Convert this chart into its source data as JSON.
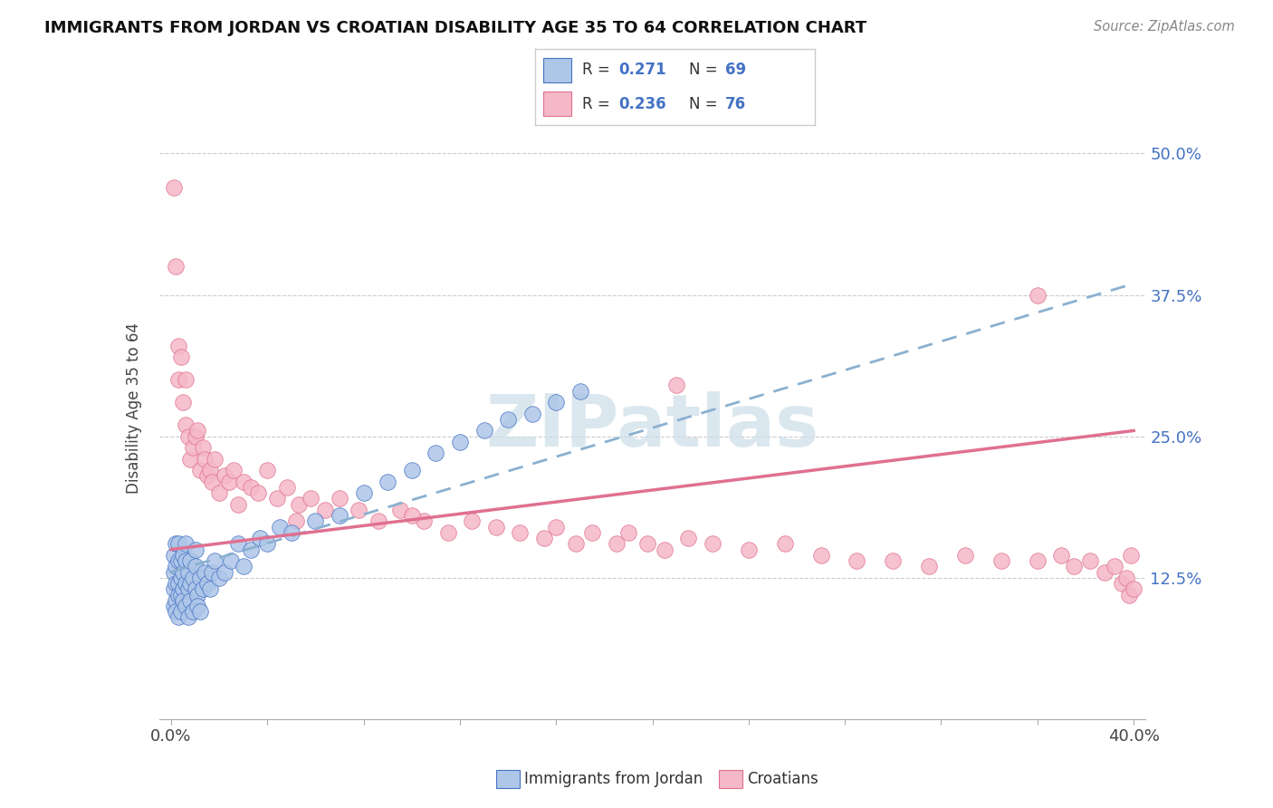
{
  "title": "IMMIGRANTS FROM JORDAN VS CROATIAN DISABILITY AGE 35 TO 64 CORRELATION CHART",
  "source_text": "Source: ZipAtlas.com",
  "ylabel": "Disability Age 35 to 64",
  "xlim": [
    0.0,
    0.4
  ],
  "ylim": [
    0.0,
    0.55
  ],
  "xtick_vals": [
    0.0,
    0.04,
    0.08,
    0.12,
    0.16,
    0.2,
    0.24,
    0.28,
    0.32,
    0.36,
    0.4
  ],
  "xtick_labels": [
    "0.0%",
    "",
    "",
    "",
    "",
    "",
    "",
    "",
    "",
    "",
    "40.0%"
  ],
  "yticks": [
    0.125,
    0.25,
    0.375,
    0.5
  ],
  "ytick_labels": [
    "12.5%",
    "25.0%",
    "37.5%",
    "50.0%"
  ],
  "jordan_color": "#aec6e8",
  "croatian_color": "#f5b8c8",
  "jordan_line_color": "#4472c4",
  "croatian_line_color": "#e07090",
  "jordan_trend_color": "#8ab0d0",
  "croatian_trend_color": "#e07090",
  "background_color": "#ffffff",
  "watermark_text": "ZIPatlas",
  "watermark_color": "#ccdde8",
  "legend_R_jordan": "0.271",
  "legend_N_jordan": "69",
  "legend_R_croatian": "0.236",
  "legend_N_croatian": "76",
  "jordan_x": [
    0.001,
    0.001,
    0.001,
    0.001,
    0.002,
    0.002,
    0.002,
    0.002,
    0.002,
    0.003,
    0.003,
    0.003,
    0.003,
    0.003,
    0.004,
    0.004,
    0.004,
    0.004,
    0.005,
    0.005,
    0.005,
    0.005,
    0.006,
    0.006,
    0.006,
    0.006,
    0.007,
    0.007,
    0.007,
    0.008,
    0.008,
    0.008,
    0.009,
    0.009,
    0.01,
    0.01,
    0.01,
    0.011,
    0.011,
    0.012,
    0.012,
    0.013,
    0.014,
    0.015,
    0.016,
    0.017,
    0.018,
    0.02,
    0.022,
    0.025,
    0.028,
    0.03,
    0.033,
    0.037,
    0.04,
    0.045,
    0.05,
    0.06,
    0.07,
    0.08,
    0.09,
    0.1,
    0.11,
    0.12,
    0.13,
    0.14,
    0.15,
    0.16,
    0.17
  ],
  "jordan_y": [
    0.13,
    0.145,
    0.115,
    0.1,
    0.135,
    0.12,
    0.105,
    0.155,
    0.095,
    0.14,
    0.12,
    0.11,
    0.155,
    0.09,
    0.125,
    0.14,
    0.11,
    0.095,
    0.13,
    0.115,
    0.145,
    0.105,
    0.12,
    0.14,
    0.1,
    0.155,
    0.115,
    0.13,
    0.09,
    0.12,
    0.14,
    0.105,
    0.125,
    0.095,
    0.115,
    0.135,
    0.15,
    0.11,
    0.1,
    0.125,
    0.095,
    0.115,
    0.13,
    0.12,
    0.115,
    0.13,
    0.14,
    0.125,
    0.13,
    0.14,
    0.155,
    0.135,
    0.15,
    0.16,
    0.155,
    0.17,
    0.165,
    0.175,
    0.18,
    0.2,
    0.21,
    0.22,
    0.235,
    0.245,
    0.255,
    0.265,
    0.27,
    0.28,
    0.29
  ],
  "croatian_x": [
    0.001,
    0.002,
    0.003,
    0.003,
    0.004,
    0.005,
    0.006,
    0.006,
    0.007,
    0.008,
    0.009,
    0.01,
    0.011,
    0.012,
    0.013,
    0.014,
    0.015,
    0.016,
    0.017,
    0.018,
    0.02,
    0.022,
    0.024,
    0.026,
    0.028,
    0.03,
    0.033,
    0.036,
    0.04,
    0.044,
    0.048,
    0.053,
    0.058,
    0.064,
    0.07,
    0.078,
    0.086,
    0.095,
    0.105,
    0.115,
    0.125,
    0.135,
    0.145,
    0.155,
    0.16,
    0.168,
    0.175,
    0.185,
    0.19,
    0.198,
    0.205,
    0.215,
    0.225,
    0.24,
    0.255,
    0.27,
    0.285,
    0.3,
    0.315,
    0.33,
    0.345,
    0.36,
    0.37,
    0.375,
    0.382,
    0.388,
    0.392,
    0.395,
    0.397,
    0.398,
    0.399,
    0.4,
    0.052,
    0.1,
    0.21,
    0.36
  ],
  "croatian_y": [
    0.47,
    0.4,
    0.33,
    0.3,
    0.32,
    0.28,
    0.26,
    0.3,
    0.25,
    0.23,
    0.24,
    0.25,
    0.255,
    0.22,
    0.24,
    0.23,
    0.215,
    0.22,
    0.21,
    0.23,
    0.2,
    0.215,
    0.21,
    0.22,
    0.19,
    0.21,
    0.205,
    0.2,
    0.22,
    0.195,
    0.205,
    0.19,
    0.195,
    0.185,
    0.195,
    0.185,
    0.175,
    0.185,
    0.175,
    0.165,
    0.175,
    0.17,
    0.165,
    0.16,
    0.17,
    0.155,
    0.165,
    0.155,
    0.165,
    0.155,
    0.15,
    0.16,
    0.155,
    0.15,
    0.155,
    0.145,
    0.14,
    0.14,
    0.135,
    0.145,
    0.14,
    0.14,
    0.145,
    0.135,
    0.14,
    0.13,
    0.135,
    0.12,
    0.125,
    0.11,
    0.145,
    0.115,
    0.175,
    0.18,
    0.295,
    0.375
  ]
}
